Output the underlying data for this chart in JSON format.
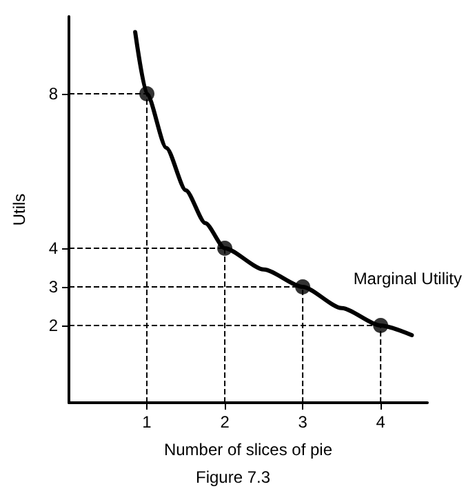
{
  "chart_data": {
    "type": "line",
    "xlabel": "Number of slices of pie",
    "ylabel": "Utils",
    "annotations": [
      "Marginal Utility",
      "Figure 7.3"
    ],
    "xlim": [
      0,
      4.6
    ],
    "xticks": [
      1,
      2,
      3,
      4
    ],
    "ylim": [
      0,
      10
    ],
    "yticks": [
      2,
      3,
      4,
      8
    ],
    "grid": false,
    "series": [
      {
        "color": "#000000",
        "marker": "none",
        "x": [
          0.85,
          1,
          1.25,
          1.5,
          1.75,
          2,
          2.5,
          3,
          3.5,
          4,
          4.4
        ],
        "values": [
          9.6,
          8,
          6.6,
          5.5,
          4.65,
          4,
          3.45,
          3,
          2.45,
          2,
          1.75
        ]
      },
      {
        "type": "scatter",
        "color": "#000000",
        "marker": "circle",
        "x": [
          1,
          2,
          3,
          4
        ],
        "values": [
          8,
          4,
          3,
          2
        ]
      }
    ],
    "ref_lines": [
      {
        "axis": "x",
        "value": 1,
        "line_style": "dashed"
      },
      {
        "axis": "x",
        "value": 2,
        "line_style": "dashed"
      },
      {
        "axis": "x",
        "value": 3,
        "line_style": "dashed"
      },
      {
        "axis": "x",
        "value": 4,
        "line_style": "dashed"
      },
      {
        "axis": "y",
        "value": 8,
        "line_style": "dashed"
      },
      {
        "axis": "y",
        "value": 4,
        "line_style": "dashed"
      },
      {
        "axis": "y",
        "value": 3,
        "line_style": "dashed"
      },
      {
        "axis": "y",
        "value": 2,
        "line_style": "dashed"
      }
    ]
  }
}
